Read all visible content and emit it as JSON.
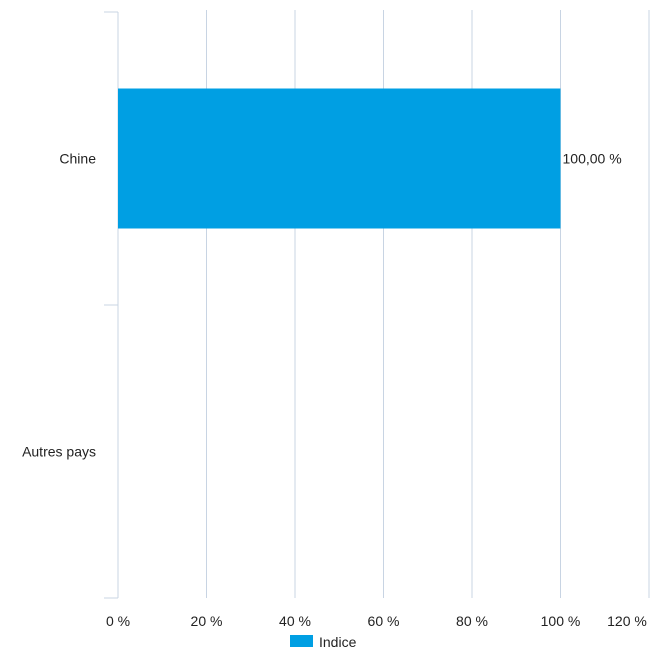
{
  "chart_data": {
    "type": "bar",
    "orientation": "horizontal",
    "categories": [
      "Chine",
      "Autres pays"
    ],
    "series": [
      {
        "name": "Indice",
        "values": [
          100,
          null
        ],
        "color": "#009fe3"
      }
    ],
    "data_labels": [
      "100,00 %",
      ""
    ],
    "xlim": [
      0,
      120
    ],
    "x_ticks": [
      0,
      20,
      40,
      60,
      80,
      100,
      120
    ],
    "x_tick_labels": [
      "0 %",
      "20 %",
      "40 %",
      "60 %",
      "80 %",
      "100 %",
      "120 %"
    ],
    "grid": true,
    "legend": {
      "position": "bottom",
      "entries": [
        "Indice"
      ]
    }
  }
}
